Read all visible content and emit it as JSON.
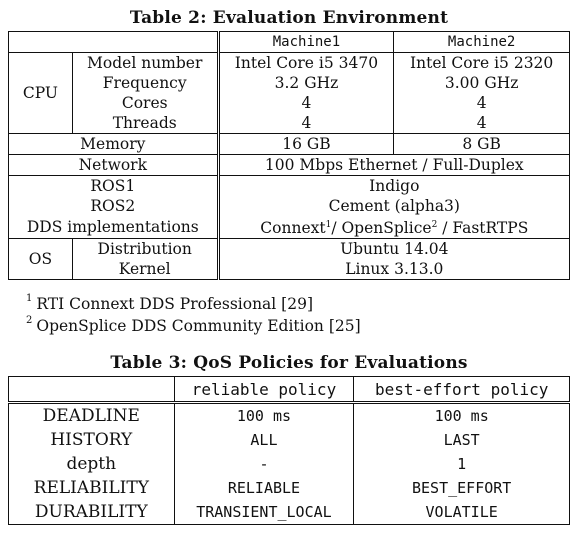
{
  "table2": {
    "caption": "Table 2: Evaluation Environment",
    "header": {
      "machine1": "Machine1",
      "machine2": "Machine2"
    },
    "cpu": {
      "label": "CPU",
      "rows": [
        {
          "name": "Model number",
          "m1": "Intel Core i5 3470",
          "m2": "Intel Core i5 2320"
        },
        {
          "name": "Frequency",
          "m1": "3.2 GHz",
          "m2": "3.00 GHz"
        },
        {
          "name": "Cores",
          "m1": "4",
          "m2": "4"
        },
        {
          "name": "Threads",
          "m1": "4",
          "m2": "4"
        }
      ]
    },
    "memory": {
      "name": "Memory",
      "m1": "16 GB",
      "m2": "8 GB"
    },
    "network": {
      "name": "Network",
      "value": "100 Mbps Ethernet / Full-Duplex"
    },
    "ros1": {
      "name": "ROS1",
      "value": "Indigo"
    },
    "ros2": {
      "name": "ROS2",
      "value": "Cement (alpha3)"
    },
    "dds": {
      "name": "DDS implementations",
      "part1": "Connext",
      "sup1": "1",
      "part2": "/ OpenSplice",
      "sup2": "2",
      "part3": "/ FastRTPS"
    },
    "os": {
      "label": "OS",
      "distribution": {
        "name": "Distribution",
        "value": "Ubuntu 14.04"
      },
      "kernel": {
        "name": "Kernel",
        "value": "Linux 3.13.0"
      }
    },
    "footnotes": [
      {
        "mark": "1",
        "text": "RTI Connext DDS Professional [29]"
      },
      {
        "mark": "2",
        "text": "OpenSplice DDS Community Edition [25]"
      }
    ]
  },
  "table3": {
    "caption": "Table 3: QoS Policies for Evaluations",
    "header": {
      "reliable": "reliable policy",
      "best_effort": "best-effort policy"
    },
    "rows": [
      {
        "name": "DEADLINE",
        "reliable": "100 ms",
        "best_effort": "100 ms"
      },
      {
        "name": "HISTORY",
        "reliable": "ALL",
        "best_effort": "LAST"
      },
      {
        "name": "depth",
        "reliable": "-",
        "best_effort": "1"
      },
      {
        "name": "RELIABILITY",
        "reliable": "RELIABLE",
        "best_effort": "BEST_EFFORT"
      },
      {
        "name": "DURABILITY",
        "reliable": "TRANSIENT_LOCAL",
        "best_effort": "VOLATILE"
      }
    ]
  }
}
